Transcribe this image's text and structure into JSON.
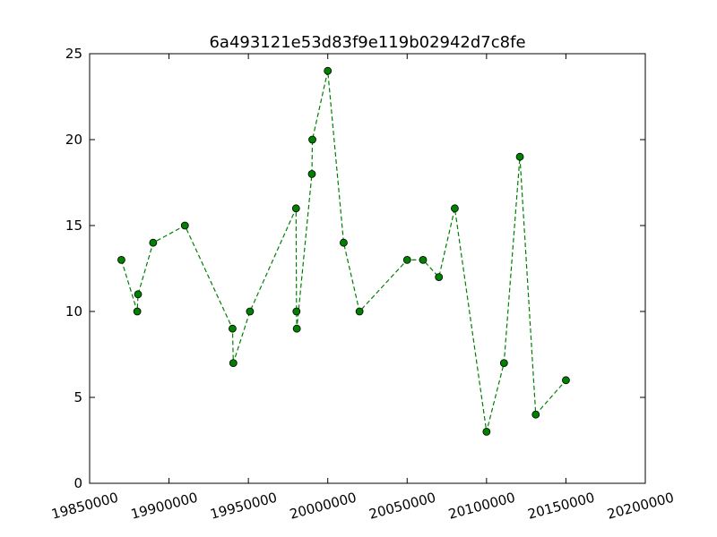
{
  "chart_data": {
    "type": "line",
    "title": "6a493121e53d83f9e119b02942d7c8fe",
    "xlabel": "",
    "ylabel": "",
    "xlim": [
      19850000,
      20200000
    ],
    "ylim": [
      0,
      25
    ],
    "x_ticks": [
      19850000,
      19900000,
      19950000,
      20000000,
      20050000,
      20100000,
      20150000,
      20200000
    ],
    "x_tick_labels": [
      "19850000",
      "19900000",
      "19950000",
      "20000000",
      "20050000",
      "20100000",
      "20150000",
      "20200000"
    ],
    "y_ticks": [
      0,
      5,
      10,
      15,
      20,
      25
    ],
    "y_tick_labels": [
      "0",
      "5",
      "10",
      "15",
      "20",
      "25"
    ],
    "grid": false,
    "legend": "none",
    "series": [
      {
        "color": "#008000",
        "line_style": "dashed",
        "marker": "circle",
        "points": [
          {
            "x": 19870000,
            "y": 13
          },
          {
            "x": 19880000,
            "y": 10
          },
          {
            "x": 19880500,
            "y": 11
          },
          {
            "x": 19890000,
            "y": 14
          },
          {
            "x": 19910000,
            "y": 15
          },
          {
            "x": 19940000,
            "y": 9
          },
          {
            "x": 19940500,
            "y": 7
          },
          {
            "x": 19951000,
            "y": 10
          },
          {
            "x": 19980000,
            "y": 16
          },
          {
            "x": 19980300,
            "y": 10
          },
          {
            "x": 19980500,
            "y": 9
          },
          {
            "x": 19990000,
            "y": 18
          },
          {
            "x": 19990300,
            "y": 20
          },
          {
            "x": 20000000,
            "y": 24
          },
          {
            "x": 20010000,
            "y": 14
          },
          {
            "x": 20020000,
            "y": 10
          },
          {
            "x": 20050000,
            "y": 13
          },
          {
            "x": 20060000,
            "y": 13
          },
          {
            "x": 20070000,
            "y": 12
          },
          {
            "x": 20080000,
            "y": 16
          },
          {
            "x": 20100000,
            "y": 3
          },
          {
            "x": 20111000,
            "y": 7
          },
          {
            "x": 20121000,
            "y": 19
          },
          {
            "x": 20131000,
            "y": 4
          },
          {
            "x": 20150000,
            "y": 6
          }
        ]
      }
    ]
  }
}
